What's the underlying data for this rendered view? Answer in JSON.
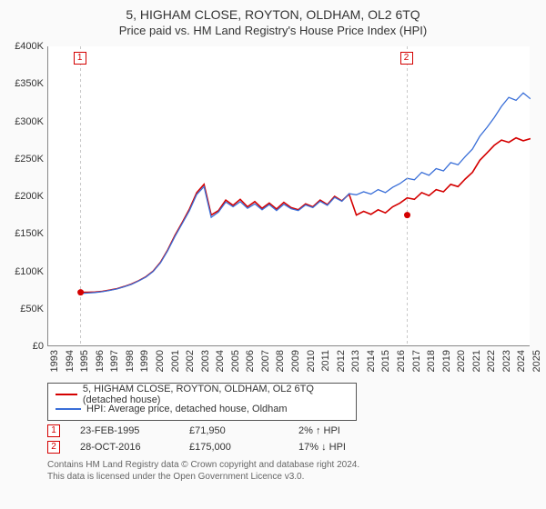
{
  "title": "5, HIGHAM CLOSE, ROYTON, OLDHAM, OL2 6TQ",
  "subtitle": "Price paid vs. HM Land Registry's House Price Index (HPI)",
  "chart": {
    "type": "line",
    "background_color": "#ffffff",
    "axis_color": "#888888",
    "label_fontsize": 11,
    "xlim": [
      1993,
      2025
    ],
    "ylim": [
      0,
      400000
    ],
    "ytick_step": 50000,
    "yticks": [
      "£0",
      "£50K",
      "£100K",
      "£150K",
      "£200K",
      "£250K",
      "£300K",
      "£350K",
      "£400K"
    ],
    "xticks": [
      "1993",
      "1994",
      "1995",
      "1996",
      "1997",
      "1998",
      "1999",
      "2000",
      "2001",
      "2002",
      "2003",
      "2004",
      "2005",
      "2006",
      "2007",
      "2008",
      "2009",
      "2010",
      "2011",
      "2012",
      "2013",
      "2014",
      "2015",
      "2016",
      "2017",
      "2018",
      "2019",
      "2020",
      "2021",
      "2022",
      "2023",
      "2024",
      "2025"
    ],
    "series": [
      {
        "name": "5, HIGHAM CLOSE, ROYTON, OLDHAM, OL2 6TQ (detached house)",
        "color": "#d40000",
        "line_width": 1.6,
        "start_year": 1995.15,
        "data": [
          71950,
          72000,
          72400,
          73200,
          74900,
          76800,
          79800,
          83000,
          87500,
          92800,
          100200,
          112000,
          128500,
          148000,
          165000,
          183000,
          205000,
          216000,
          175000,
          181000,
          195000,
          188000,
          196000,
          186000,
          193000,
          184000,
          191000,
          183000,
          192000,
          185000,
          182000,
          190000,
          186000,
          195000,
          189000,
          200000,
          194000,
          203000,
          175000,
          180000,
          176000,
          182000,
          178000,
          186000,
          191000,
          198000,
          196000,
          205000,
          201000,
          209000,
          206000,
          216000,
          213000,
          223000,
          232000,
          248000,
          258000,
          268000,
          275000,
          272000,
          278000,
          274000,
          277000
        ]
      },
      {
        "name": "HPI: Average price, detached house, Oldham",
        "color": "#3a6fd8",
        "line_width": 1.3,
        "start_year": 1995.15,
        "data": [
          70500,
          71000,
          71800,
          72900,
          74600,
          76500,
          79400,
          82600,
          87100,
          92400,
          99800,
          111200,
          127500,
          146500,
          163500,
          181000,
          202500,
          213000,
          172000,
          179000,
          192500,
          186000,
          193000,
          184000,
          190000,
          182000,
          189000,
          181000,
          189500,
          183500,
          181000,
          188500,
          185000,
          193500,
          188000,
          198500,
          193500,
          203500,
          202000,
          206000,
          203000,
          209000,
          205000,
          212000,
          217000,
          224000,
          222000,
          232000,
          228000,
          237000,
          234000,
          245000,
          242000,
          253000,
          263000,
          280000,
          292000,
          305000,
          320000,
          332000,
          328000,
          338000,
          330000
        ]
      }
    ],
    "sale_markers": [
      {
        "id": "1",
        "year": 1995.15,
        "value": 71950,
        "color": "#d40000"
      },
      {
        "id": "2",
        "year": 2016.82,
        "value": 175000,
        "color": "#d40000"
      }
    ]
  },
  "legend": {
    "series1_label": "5, HIGHAM CLOSE, ROYTON, OLDHAM, OL2 6TQ (detached house)",
    "series2_label": "HPI: Average price, detached house, Oldham"
  },
  "sales": [
    {
      "id": "1",
      "date": "23-FEB-1995",
      "price": "£71,950",
      "delta": "2% ↑ HPI",
      "color": "#d40000"
    },
    {
      "id": "2",
      "date": "28-OCT-2016",
      "price": "£175,000",
      "delta": "17% ↓ HPI",
      "color": "#d40000"
    }
  ],
  "disclaimer_line1": "Contains HM Land Registry data © Crown copyright and database right 2024.",
  "disclaimer_line2": "This data is licensed under the Open Government Licence v3.0."
}
